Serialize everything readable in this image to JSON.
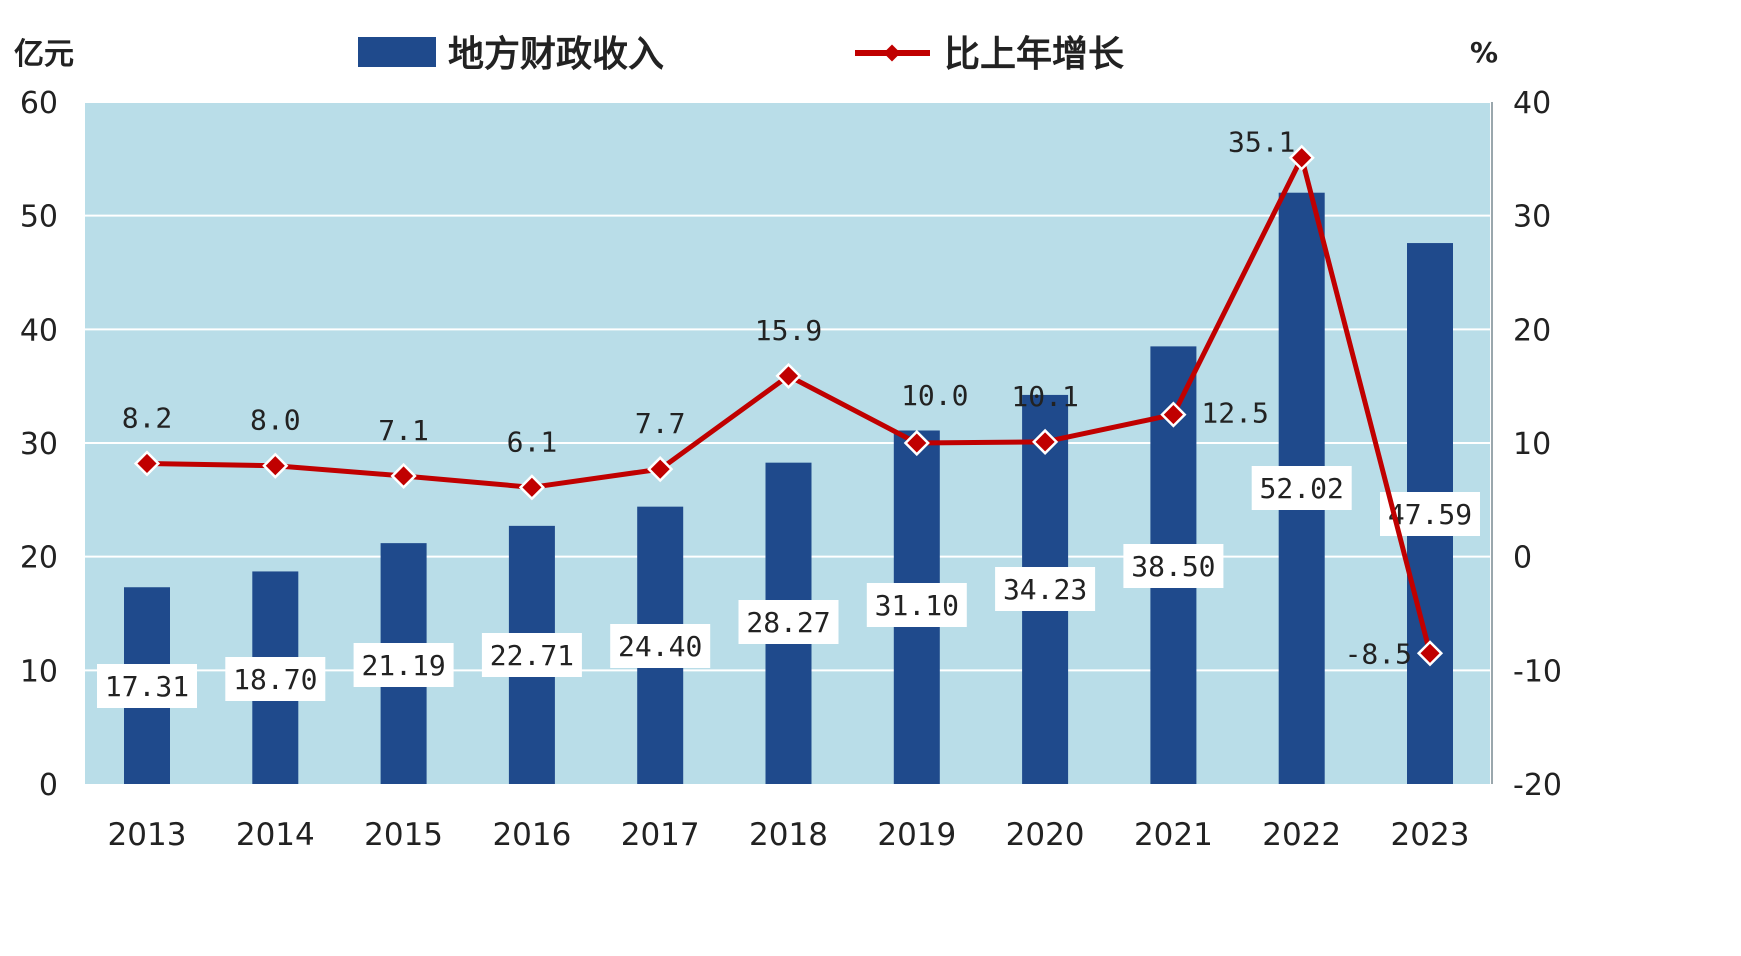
{
  "chart_data": {
    "type": "bar",
    "categories": [
      "2013",
      "2014",
      "2015",
      "2016",
      "2017",
      "2018",
      "2019",
      "2020",
      "2021",
      "2022",
      "2023"
    ],
    "series": [
      {
        "name": "地方财政收入",
        "type": "bar",
        "axis": "left",
        "values": [
          17.31,
          18.7,
          21.19,
          22.71,
          24.4,
          28.27,
          31.1,
          34.23,
          38.5,
          52.02,
          47.59
        ],
        "labels": [
          "17.31",
          "18.70",
          "21.19",
          "22.71",
          "24.40",
          "28.27",
          "31.10",
          "34.23",
          "38.50",
          "52.02",
          "47.59"
        ],
        "color": "#1f4a8c"
      },
      {
        "name": "比上年增长",
        "type": "line",
        "axis": "right",
        "values": [
          8.2,
          8.0,
          7.1,
          6.1,
          7.7,
          15.9,
          10.0,
          10.1,
          12.5,
          35.1,
          -8.5
        ],
        "labels": [
          "8.2",
          "8.0",
          "7.1",
          "6.1",
          "7.7",
          "15.9",
          "10.0",
          "10.1",
          "12.5",
          "35.1",
          "-8.5"
        ],
        "color": "#c00000"
      }
    ],
    "ylabel": "亿元",
    "ylabel_right": "%",
    "ylim": [
      0,
      60
    ],
    "ylim_right": [
      -20,
      40
    ],
    "yticks": [
      "0",
      "10",
      "20",
      "30",
      "40",
      "50",
      "60"
    ],
    "yticks_right": [
      "-20",
      "-10",
      "0",
      "10",
      "20",
      "30",
      "40"
    ],
    "grid": true,
    "legend_position": "top",
    "plot_background": "#b9dde8"
  }
}
